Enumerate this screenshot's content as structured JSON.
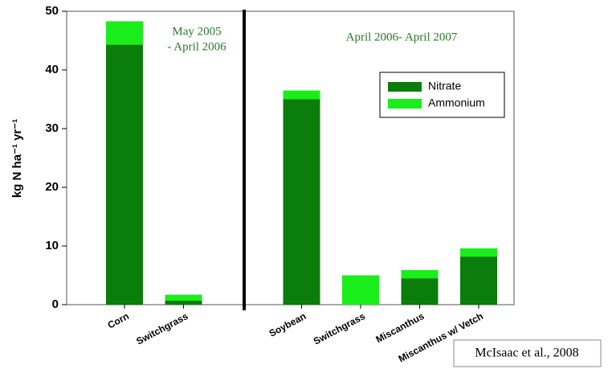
{
  "chart_data": {
    "type": "stacked_bar",
    "categories": [
      "Corn",
      "Switchgrass",
      null,
      "Soybean",
      "Switchgrass",
      "Miscanthus",
      "Miscanthus w/ Vetch"
    ],
    "series": [
      {
        "name": "Nitrate",
        "color": "#0a7d0a",
        "values": [
          44.3,
          0.7,
          null,
          35,
          0,
          4.5,
          8.2
        ]
      },
      {
        "name": "Ammonium",
        "color": "#1aee1a",
        "values": [
          4.0,
          1.0,
          null,
          1.5,
          5,
          1.4,
          1.4
        ]
      }
    ],
    "y_label": "kg N ha⁻¹ yr⁻¹",
    "ylim": [
      0,
      50
    ],
    "yticks": [
      0,
      10,
      20,
      30,
      40,
      50
    ],
    "annotations": [
      "May 2005",
      "- April 2006",
      "April 2006- April 2007"
    ],
    "source": "McIsaac et al., 2008",
    "legend": "upper right"
  }
}
